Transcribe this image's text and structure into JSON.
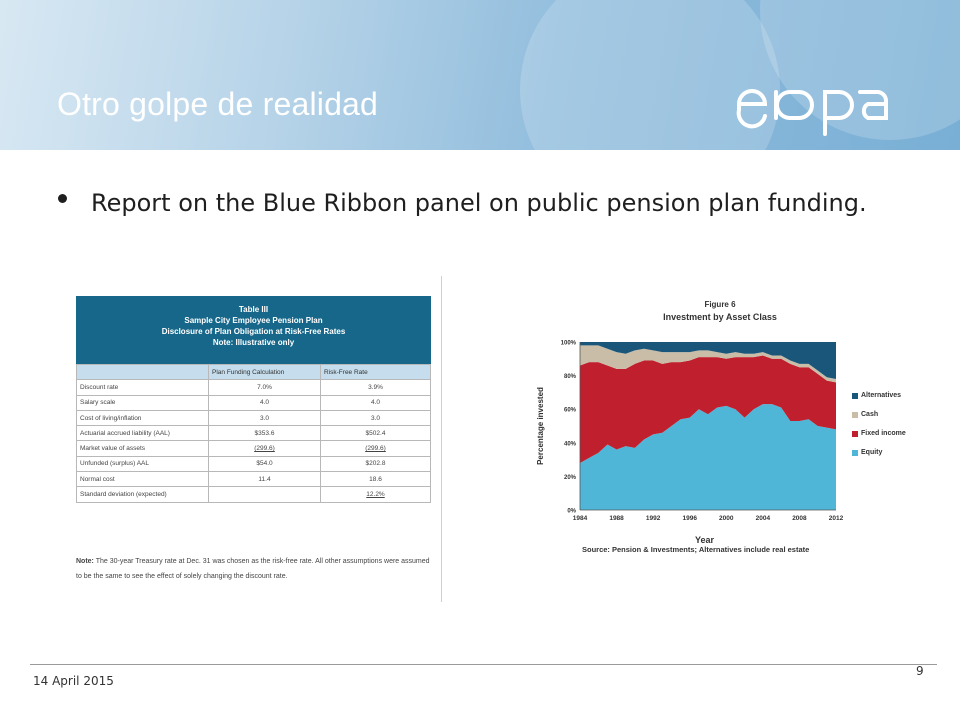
{
  "slide": {
    "title": "Otro golpe de realidad",
    "logo_text": "eiopa",
    "bullet_text": "Report on the Blue Ribbon panel on public pension plan funding.",
    "footer_date": "14 April 2015",
    "page_number": "9"
  },
  "table": {
    "title_lines": [
      "Table III",
      "Sample City Employee Pension Plan",
      "Disclosure of Plan Obligation at Risk-Free Rates",
      "Note: Illustrative only"
    ],
    "columns": [
      "",
      "Plan Funding Calculation",
      "Risk-Free Rate"
    ],
    "rows": [
      [
        "Discount rate",
        "7.0%",
        "3.9%"
      ],
      [
        "Salary scale",
        "4.0",
        "4.0"
      ],
      [
        "Cost of living/inflation",
        "3.0",
        "3.0"
      ],
      [
        "Actuarial accrued liability (AAL)",
        "$353.6",
        "$502.4"
      ],
      [
        "Market value of assets",
        "(299.6)",
        "(299.6)"
      ],
      [
        "Unfunded (surplus) AAL",
        "$54.0",
        "$202.8"
      ],
      [
        "Normal cost",
        "11.4",
        "18.6"
      ],
      [
        "Standard deviation (expected)",
        "",
        "12.2%"
      ]
    ],
    "note_label": "Note:",
    "note": "The 30-year Treasury rate at Dec. 31 was chosen as the risk-free rate. All other assumptions were assumed to be the same to see the effect of solely changing the discount rate."
  },
  "chart_data": {
    "type": "area",
    "title": "Figure 6",
    "subtitle": "Investment by Asset Class",
    "xlabel": "Year",
    "ylabel": "Percentage invested",
    "x": [
      1984,
      1985,
      1986,
      1987,
      1988,
      1989,
      1990,
      1991,
      1992,
      1993,
      1994,
      1995,
      1996,
      1997,
      1998,
      1999,
      2000,
      2001,
      2002,
      2003,
      2004,
      2005,
      2006,
      2007,
      2008,
      2009,
      2010,
      2011,
      2012
    ],
    "xticks": [
      "1984",
      "1988",
      "1992",
      "1996",
      "2000",
      "2004",
      "2008",
      "2012"
    ],
    "yticks": [
      "0%",
      "20%",
      "40%",
      "60%",
      "80%",
      "100%"
    ],
    "ylim": [
      0,
      100
    ],
    "stacked": true,
    "series": [
      {
        "name": "Equity",
        "color": "#4fb6d8",
        "values": [
          28,
          31,
          34,
          39,
          36,
          38,
          37,
          42,
          45,
          46,
          50,
          54,
          55,
          60,
          57,
          61,
          62,
          60,
          55,
          60,
          63,
          63,
          61,
          53,
          53,
          54,
          50,
          49,
          48
        ]
      },
      {
        "name": "Fixed income",
        "color": "#c0202e",
        "values": [
          58,
          57,
          54,
          47,
          48,
          46,
          50,
          47,
          44,
          41,
          38,
          34,
          34,
          31,
          34,
          30,
          28,
          31,
          36,
          31,
          29,
          27,
          29,
          34,
          32,
          31,
          31,
          28,
          28
        ]
      },
      {
        "name": "Cash",
        "color": "#c9bda8",
        "values": [
          12,
          10,
          10,
          10,
          10,
          9,
          8,
          7,
          6,
          7,
          6,
          6,
          5,
          4,
          4,
          3,
          3,
          3,
          2,
          2,
          2,
          2,
          2,
          2,
          2,
          2,
          2,
          2,
          2
        ]
      },
      {
        "name": "Alternatives",
        "color": "#1a567a",
        "values": [
          2,
          2,
          2,
          4,
          6,
          7,
          5,
          4,
          5,
          6,
          6,
          6,
          6,
          5,
          5,
          6,
          7,
          6,
          7,
          7,
          6,
          8,
          8,
          11,
          13,
          13,
          17,
          21,
          22
        ]
      }
    ],
    "legend_order": [
      "Alternatives",
      "Cash",
      "Fixed income",
      "Equity"
    ],
    "legend_position": "right",
    "source": "Source: Pension & Investments; Alternatives include real estate",
    "grid": false
  },
  "colors": {
    "header_text": "#ffffff",
    "table_header": "#17678a",
    "table_subheader": "#c5ddec"
  }
}
